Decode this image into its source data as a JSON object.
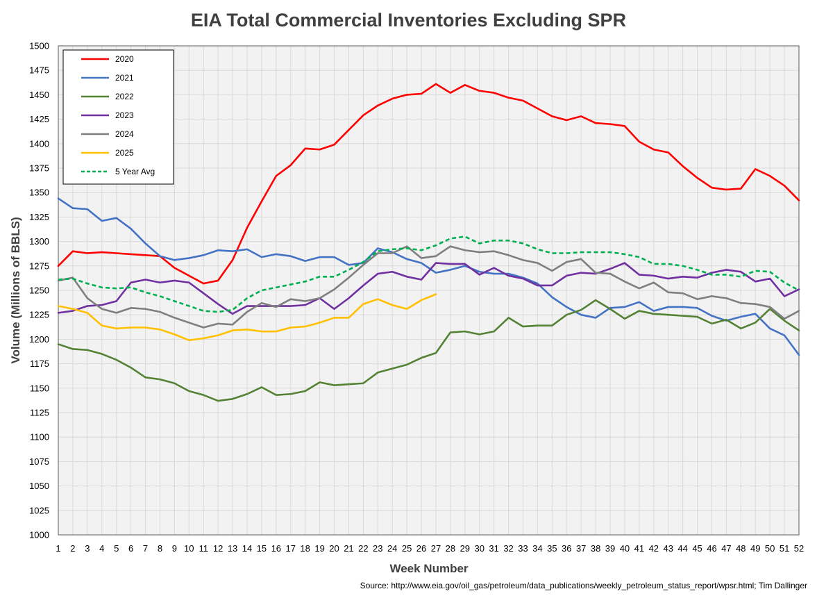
{
  "chart_data": {
    "type": "line",
    "title": "EIA Total Commercial Inventories Excluding SPR",
    "xlabel": "Week Number",
    "ylabel": "Volume (Millions of BBLS)",
    "source": "Source: http://www.eia.gov/oil_gas/petroleum/data_publications/weekly_petroleum_status_report/wpsr.html; Tim Dallinger",
    "xlim": [
      1,
      52
    ],
    "ylim": [
      1000,
      1500
    ],
    "ytick_step": 25,
    "grid": true,
    "legend_position": "top-left",
    "x": [
      1,
      2,
      3,
      4,
      5,
      6,
      7,
      8,
      9,
      10,
      11,
      12,
      13,
      14,
      15,
      16,
      17,
      18,
      19,
      20,
      21,
      22,
      23,
      24,
      25,
      26,
      27,
      28,
      29,
      30,
      31,
      32,
      33,
      34,
      35,
      36,
      37,
      38,
      39,
      40,
      41,
      42,
      43,
      44,
      45,
      46,
      47,
      48,
      49,
      50,
      51,
      52
    ],
    "series": [
      {
        "name": "2020",
        "color": "#ff0000",
        "dash": false,
        "values": [
          1275,
          1290,
          1288,
          1289,
          1288,
          1287,
          1286,
          1285,
          1273,
          1265,
          1257,
          1260,
          1281,
          1314,
          1341,
          1367,
          1378,
          1395,
          1394,
          1399,
          1414,
          1429,
          1439,
          1446,
          1450,
          1451,
          1461,
          1452,
          1460,
          1454,
          1452,
          1447,
          1444,
          1436,
          1428,
          1424,
          1428,
          1421,
          1420,
          1418,
          1402,
          1394,
          1391,
          1377,
          1365,
          1355,
          1353,
          1354,
          1374,
          1367,
          1357,
          1342
        ]
      },
      {
        "name": "2021",
        "color": "#4472c4",
        "dash": false,
        "values": [
          1344,
          1334,
          1333,
          1321,
          1324,
          1313,
          1298,
          1285,
          1281,
          1283,
          1286,
          1291,
          1290,
          1292,
          1284,
          1287,
          1285,
          1280,
          1284,
          1284,
          1276,
          1278,
          1293,
          1289,
          1282,
          1278,
          1268,
          1271,
          1275,
          1269,
          1267,
          1267,
          1263,
          1257,
          1243,
          1233,
          1225,
          1222,
          1232,
          1233,
          1238,
          1229,
          1233,
          1233,
          1232,
          1224,
          1219,
          1223,
          1226,
          1211,
          1204,
          1184
        ]
      },
      {
        "name": "2022",
        "color": "#548235",
        "dash": false,
        "values": [
          1195,
          1190,
          1189,
          1185,
          1179,
          1171,
          1161,
          1159,
          1155,
          1147,
          1143,
          1137,
          1139,
          1144,
          1151,
          1143,
          1144,
          1147,
          1156,
          1153,
          1154,
          1155,
          1166,
          1170,
          1174,
          1181,
          1186,
          1207,
          1208,
          1205,
          1208,
          1222,
          1213,
          1214,
          1214,
          1225,
          1230,
          1240,
          1231,
          1221,
          1229,
          1226,
          1225,
          1224,
          1223,
          1216,
          1220,
          1211,
          1217,
          1231,
          1219,
          1209
        ]
      },
      {
        "name": "2023",
        "color": "#7030a0",
        "dash": false,
        "values": [
          1227,
          1229,
          1234,
          1235,
          1239,
          1258,
          1261,
          1258,
          1260,
          1258,
          1247,
          1236,
          1226,
          1234,
          1234,
          1234,
          1234,
          1235,
          1242,
          1231,
          1242,
          1255,
          1267,
          1269,
          1264,
          1261,
          1278,
          1277,
          1277,
          1266,
          1273,
          1265,
          1262,
          1255,
          1255,
          1265,
          1268,
          1267,
          1272,
          1278,
          1266,
          1265,
          1262,
          1264,
          1263,
          1268,
          1271,
          1269,
          1259,
          1262,
          1244,
          1251
        ]
      },
      {
        "name": "2024",
        "color": "#7f7f7f",
        "dash": false,
        "values": [
          1260,
          1263,
          1242,
          1231,
          1227,
          1232,
          1231,
          1228,
          1222,
          1217,
          1212,
          1216,
          1215,
          1228,
          1237,
          1233,
          1241,
          1239,
          1242,
          1251,
          1263,
          1276,
          1288,
          1288,
          1295,
          1283,
          1285,
          1295,
          1291,
          1289,
          1290,
          1286,
          1281,
          1278,
          1270,
          1279,
          1282,
          1268,
          1267,
          1259,
          1252,
          1258,
          1248,
          1247,
          1241,
          1244,
          1242,
          1237,
          1236,
          1233,
          1221,
          1229
        ]
      },
      {
        "name": "2025",
        "color": "#ffc000",
        "dash": false,
        "values": [
          1234,
          1231,
          1227,
          1214,
          1211,
          1212,
          1212,
          1210,
          1205,
          1199,
          1201,
          1204,
          1209,
          1210,
          1208,
          1208,
          1212,
          1213,
          1217,
          1222,
          1222,
          1236,
          1241,
          1235,
          1231,
          1240,
          1246,
          null,
          null,
          null,
          null,
          null,
          null,
          null,
          null,
          null,
          null,
          null,
          null,
          null,
          null,
          null,
          null,
          null,
          null,
          null,
          null,
          null,
          null,
          null,
          null,
          null
        ]
      },
      {
        "name": "5 Year Avg",
        "color": "#00b050",
        "dash": true,
        "values": [
          1261,
          1262,
          1257,
          1253,
          1252,
          1253,
          1248,
          1244,
          1239,
          1234,
          1229,
          1228,
          1230,
          1242,
          1250,
          1253,
          1256,
          1259,
          1264,
          1264,
          1271,
          1279,
          1290,
          1292,
          1293,
          1291,
          1296,
          1303,
          1305,
          1298,
          1301,
          1301,
          1298,
          1292,
          1288,
          1288,
          1289,
          1289,
          1289,
          1287,
          1284,
          1277,
          1277,
          1275,
          1271,
          1266,
          1266,
          1264,
          1270,
          1269,
          1258,
          1250
        ]
      }
    ]
  }
}
